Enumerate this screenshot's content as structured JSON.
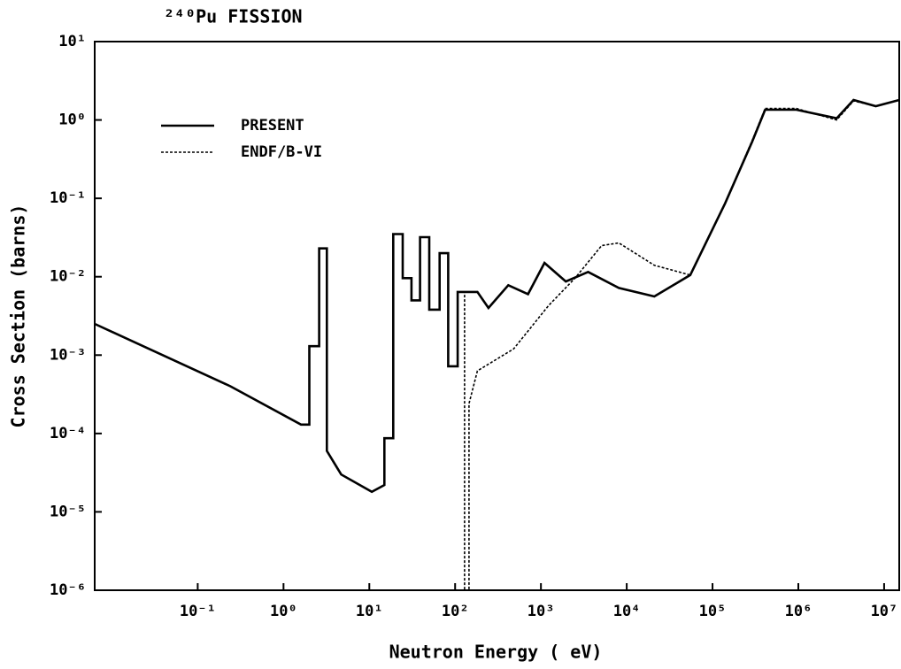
{
  "chart_data": {
    "type": "line",
    "title": "²⁴⁰Pu FISSION",
    "x_label": "Neutron Energy ( eV)",
    "y_label": "Cross Section (barns)",
    "log_x": true,
    "log_y": true,
    "legend": "upper-left",
    "xlim": [
      0.0063,
      15000000
    ],
    "ylim": [
      1e-06,
      10
    ],
    "xticks": [
      {
        "value": 0.1,
        "label": "10⁻¹"
      },
      {
        "value": 1,
        "label": "10⁰"
      },
      {
        "value": 10,
        "label": "10¹"
      },
      {
        "value": 100,
        "label": "10²"
      },
      {
        "value": 1000,
        "label": "10³"
      },
      {
        "value": 10000,
        "label": "10⁴"
      },
      {
        "value": 100000,
        "label": "10⁵"
      },
      {
        "value": 1000000,
        "label": "10⁶"
      },
      {
        "value": 10000000,
        "label": "10⁷"
      }
    ],
    "yticks": [
      {
        "value": 1e-06,
        "label": "10⁻⁶"
      },
      {
        "value": 1e-05,
        "label": "10⁻⁵"
      },
      {
        "value": 0.0001,
        "label": "10⁻⁴"
      },
      {
        "value": 0.001,
        "label": "10⁻³"
      },
      {
        "value": 0.01,
        "label": "10⁻²"
      },
      {
        "value": 0.1,
        "label": "10⁻¹"
      },
      {
        "value": 1,
        "label": "10⁰"
      },
      {
        "value": 10,
        "label": "10¹"
      }
    ],
    "series": [
      {
        "name": "PRESENT",
        "color": "#000000",
        "style": "solid",
        "x": [
          0.0063,
          0.24,
          1.6,
          2.0,
          2.0,
          2.6,
          2.6,
          3.2,
          3.2,
          4.7,
          10.7,
          15,
          15,
          19,
          19,
          24.5,
          24.5,
          31,
          31,
          39,
          39,
          50,
          50,
          66,
          66,
          83,
          83,
          107,
          107,
          182,
          245,
          417,
          708,
          1100,
          1950,
          3550,
          8100,
          21000,
          55000,
          140000,
          290000,
          410000,
          950000,
          2800000,
          4400000,
          8000000,
          15000000
        ],
        "values": [
          0.0025,
          0.0004,
          0.00013,
          0.00013,
          0.0013,
          0.0013,
          0.023,
          0.023,
          6e-05,
          3e-05,
          1.8e-05,
          2.2e-05,
          8.7e-05,
          8.7e-05,
          0.035,
          0.035,
          0.0096,
          0.0096,
          0.005,
          0.005,
          0.032,
          0.032,
          0.0038,
          0.0038,
          0.02,
          0.02,
          0.00072,
          0.00072,
          0.0064,
          0.0064,
          0.004,
          0.0078,
          0.006,
          0.015,
          0.0087,
          0.0115,
          0.0072,
          0.0056,
          0.0105,
          0.086,
          0.53,
          1.35,
          1.35,
          1.05,
          1.8,
          1.5,
          1.8
        ]
      },
      {
        "name": "ENDF/B-VI",
        "color": "#000000",
        "style": "dotted",
        "x": [
          0.0063,
          0.24,
          1.6,
          2.0,
          2.0,
          2.6,
          2.6,
          3.2,
          3.2,
          4.7,
          10.7,
          15,
          15,
          19,
          19,
          24.5,
          24.5,
          31,
          31,
          39,
          39,
          50,
          50,
          66,
          66,
          83,
          83,
          107,
          107,
          129,
          129,
          145,
          145,
          182,
          480,
          1230,
          2500,
          5100,
          8100,
          21000,
          55000,
          140000,
          290000,
          410000,
          950000,
          2800000,
          4400000,
          8000000,
          15000000
        ],
        "values": [
          0.0025,
          0.0004,
          0.00013,
          0.00013,
          0.0013,
          0.0013,
          0.023,
          0.023,
          6e-05,
          3e-05,
          1.8e-05,
          2.2e-05,
          8.7e-05,
          8.7e-05,
          0.035,
          0.035,
          0.0096,
          0.0096,
          0.005,
          0.005,
          0.032,
          0.032,
          0.0038,
          0.0038,
          0.02,
          0.02,
          0.00072,
          0.00072,
          0.0064,
          0.0064,
          1e-06,
          1e-06,
          0.00024,
          0.00063,
          0.0012,
          0.0043,
          0.0096,
          0.025,
          0.027,
          0.014,
          0.0105,
          0.086,
          0.55,
          1.4,
          1.4,
          1.0,
          1.75,
          1.5,
          1.8
        ]
      }
    ]
  }
}
